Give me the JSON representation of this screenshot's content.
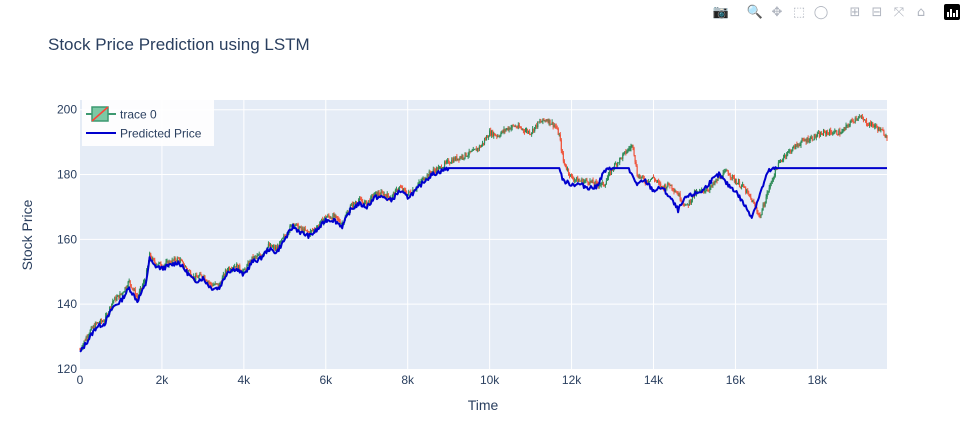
{
  "modebar": {
    "buttons": [
      {
        "name": "camera-icon",
        "glyph": "📷"
      },
      {
        "name": "zoom-icon",
        "glyph": "🔍"
      },
      {
        "name": "pan-icon",
        "glyph": "✥"
      },
      {
        "name": "box-select-icon",
        "glyph": "⬚"
      },
      {
        "name": "lasso-select-icon",
        "glyph": "◯"
      },
      {
        "name": "zoom-in-icon",
        "glyph": "⊞"
      },
      {
        "name": "zoom-out-icon",
        "glyph": "⊟"
      },
      {
        "name": "autoscale-icon",
        "glyph": "⤧"
      },
      {
        "name": "reset-axes-icon",
        "glyph": "⌂"
      }
    ],
    "logo_icon": "plotly-logo-icon"
  },
  "chart_data": {
    "type": "line",
    "title": "Stock Price Prediction using LSTM",
    "xlabel": "Time",
    "ylabel": "Stock Price",
    "xlim": [
      0,
      19700
    ],
    "ylim": [
      120,
      203
    ],
    "x_ticks": [
      0,
      2000,
      4000,
      6000,
      8000,
      10000,
      12000,
      14000,
      16000,
      18000
    ],
    "x_tick_labels": [
      "0",
      "2k",
      "4k",
      "6k",
      "8k",
      "10k",
      "12k",
      "14k",
      "16k",
      "18k"
    ],
    "y_ticks": [
      120,
      140,
      160,
      180,
      200
    ],
    "y_tick_labels": [
      "120",
      "140",
      "160",
      "180",
      "200"
    ],
    "grid": true,
    "legend_position": "top-left",
    "colors": {
      "plot_bg": "#e5ecf6",
      "increasing": "#3d9970",
      "decreasing": "#ff4136",
      "candle_inc": "#2e8b57",
      "candle_dec": "#ef553b",
      "predicted": "#0000cd"
    },
    "series": [
      {
        "name": "trace 0",
        "kind": "candlestick",
        "x": [
          0,
          200,
          400,
          600,
          800,
          1000,
          1200,
          1400,
          1600,
          1700,
          1800,
          2000,
          2200,
          2400,
          2600,
          2800,
          3000,
          3200,
          3400,
          3600,
          3800,
          4000,
          4200,
          4400,
          4600,
          4800,
          5000,
          5200,
          5400,
          5600,
          5800,
          6000,
          6200,
          6400,
          6600,
          6800,
          7000,
          7200,
          7400,
          7600,
          7800,
          8000,
          8200,
          8400,
          8600,
          8800,
          9000,
          9200,
          9400,
          9600,
          9800,
          10000,
          10200,
          10400,
          10600,
          10800,
          11000,
          11200,
          11400,
          11600,
          11700,
          11800,
          12000,
          12200,
          12400,
          12600,
          12800,
          13000,
          13200,
          13400,
          13500,
          13600,
          13800,
          14000,
          14200,
          14400,
          14600,
          14800,
          15000,
          15200,
          15400,
          15600,
          15800,
          16000,
          16200,
          16400,
          16600,
          16800,
          17000,
          17200,
          17400,
          17600,
          17800,
          18000,
          18200,
          18400,
          18600,
          18800,
          19000,
          19200,
          19400,
          19600,
          19700
        ],
        "close": [
          126,
          131,
          134,
          135,
          141,
          143,
          147,
          142,
          148,
          155,
          153,
          152,
          153,
          154,
          151,
          148,
          149,
          146,
          146,
          151,
          152,
          150,
          154,
          155,
          158,
          157,
          161,
          165,
          163,
          162,
          164,
          167,
          167,
          165,
          170,
          172,
          171,
          174,
          174,
          173,
          176,
          174,
          176,
          179,
          181,
          182,
          184,
          185,
          186,
          187,
          189,
          193,
          192,
          194,
          195,
          194,
          193,
          196,
          197,
          195,
          192,
          184,
          179,
          178,
          178,
          177,
          177,
          182,
          185,
          188,
          189,
          180,
          178,
          179,
          176,
          177,
          174,
          170,
          174,
          175,
          176,
          179,
          181,
          178,
          176,
          172,
          167,
          175,
          182,
          186,
          188,
          190,
          191,
          192,
          193,
          193,
          193,
          196,
          198,
          196,
          195,
          193,
          192
        ]
      },
      {
        "name": "Predicted Price",
        "kind": "line",
        "x": [
          0,
          200,
          400,
          600,
          800,
          1000,
          1200,
          1400,
          1600,
          1700,
          1800,
          2000,
          2200,
          2400,
          2600,
          2800,
          3000,
          3200,
          3400,
          3600,
          3800,
          4000,
          4200,
          4400,
          4600,
          4800,
          5000,
          5200,
          5400,
          5600,
          5800,
          6000,
          6200,
          6400,
          6600,
          6800,
          7000,
          7200,
          7400,
          7600,
          7800,
          8000,
          8200,
          8400,
          8600,
          8800,
          9000,
          11700,
          11800,
          12000,
          12200,
          12400,
          12600,
          12800,
          13000,
          13200,
          13400,
          13500,
          13600,
          13800,
          14000,
          14200,
          14400,
          14600,
          14800,
          15000,
          15200,
          15400,
          15600,
          15800,
          16000,
          16200,
          16400,
          16600,
          16800,
          17000,
          19700
        ],
        "values": [
          125,
          129,
          133,
          134,
          139,
          141,
          145,
          141,
          146,
          154,
          152,
          151,
          152,
          153,
          150,
          147,
          148,
          145,
          145,
          150,
          151,
          149,
          153,
          154,
          157,
          156,
          160,
          164,
          162,
          161,
          163,
          166,
          166,
          164,
          169,
          171,
          170,
          173,
          173,
          172,
          175,
          173,
          175,
          178,
          180,
          181,
          182,
          182,
          178,
          177,
          177,
          176,
          176,
          181,
          182,
          182,
          182,
          179,
          177,
          178,
          175,
          176,
          173,
          169,
          173,
          174,
          175,
          178,
          180,
          177,
          175,
          171,
          167,
          174,
          181,
          182,
          182
        ]
      }
    ]
  }
}
